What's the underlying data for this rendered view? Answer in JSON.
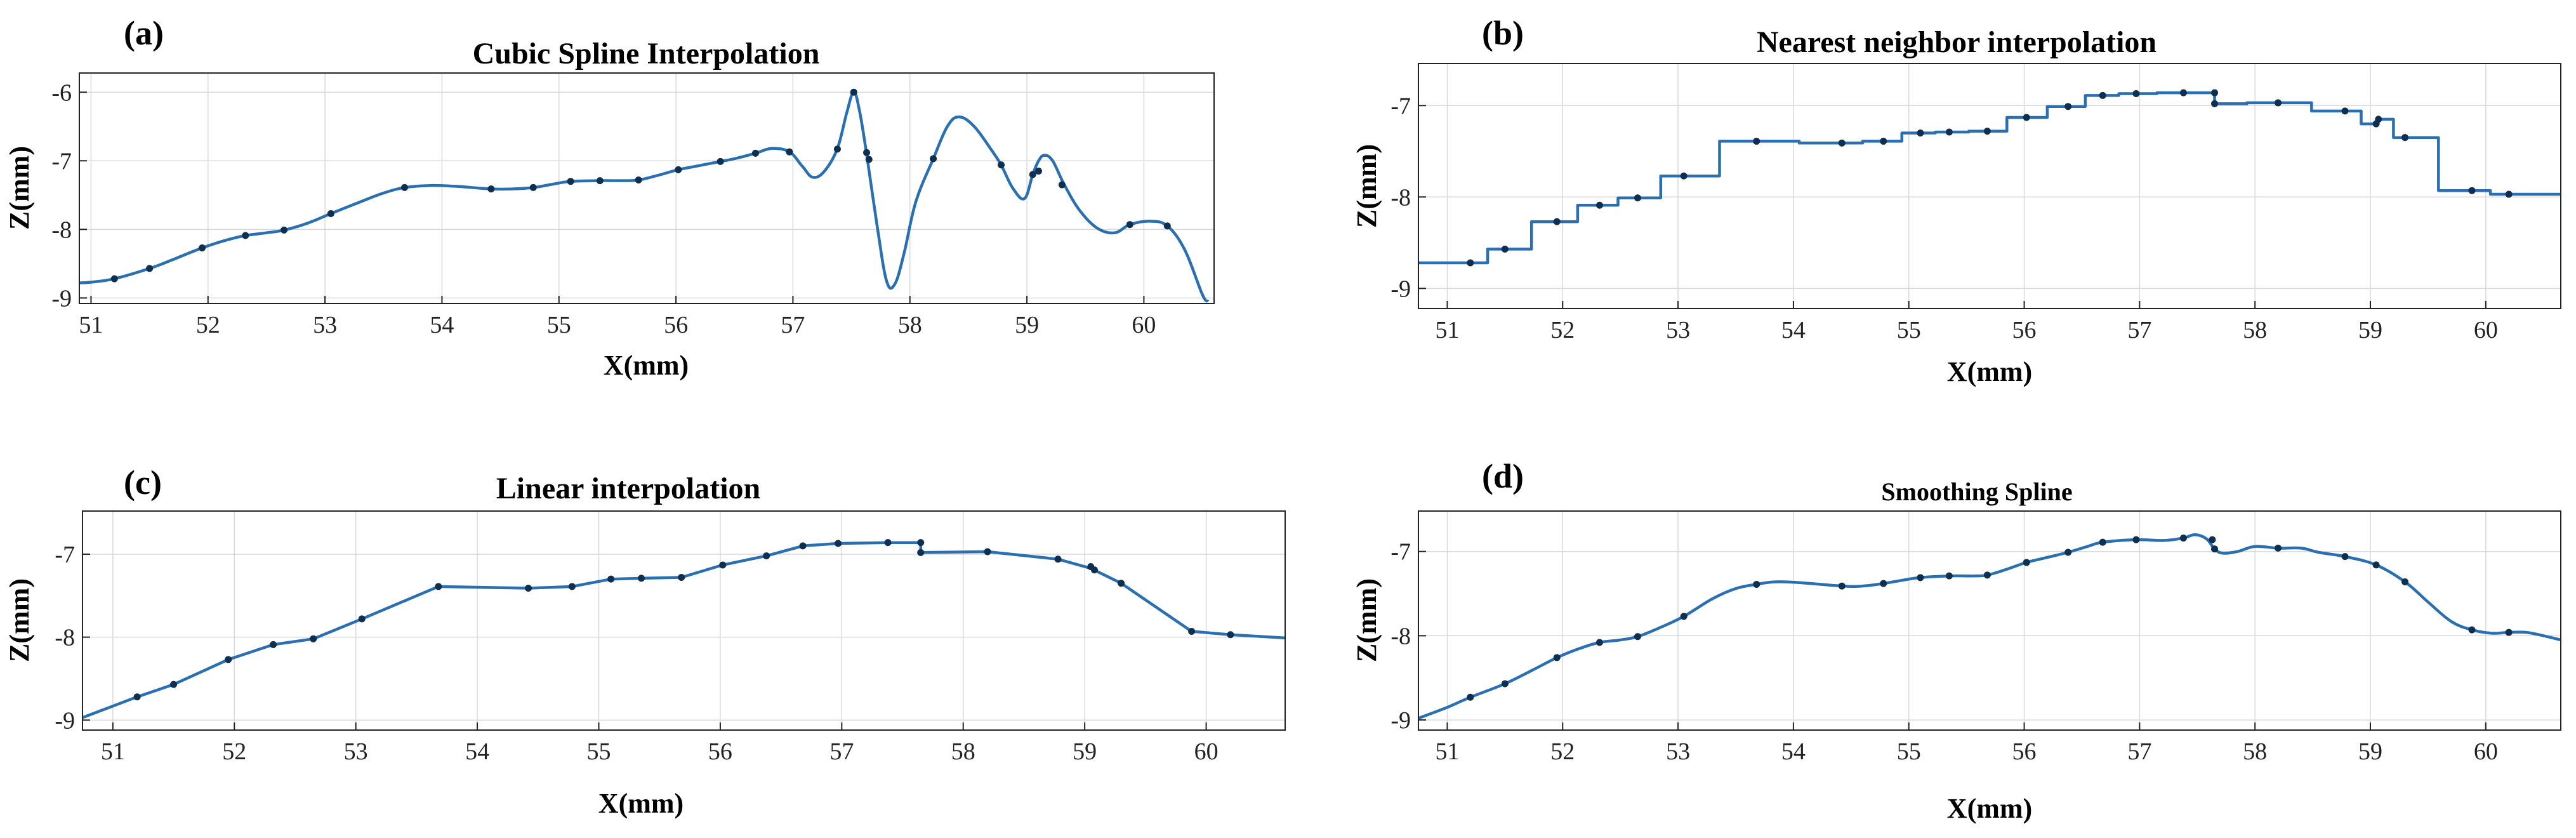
{
  "chart_data": [
    {
      "id": "a",
      "label": "(a)",
      "type": "line",
      "title": "Cubic Spline Interpolation",
      "xlabel": "X(mm)",
      "ylabel": "Z(mm)",
      "xlim": [
        50.9,
        60.6
      ],
      "ylim": [
        -9.08,
        -5.72
      ],
      "xticks": [
        51,
        52,
        53,
        54,
        55,
        56,
        57,
        58,
        59,
        60
      ],
      "yticks": [
        -9,
        -8,
        -7,
        -6
      ],
      "interp": "spline",
      "curve": [
        [
          50.9,
          -8.78
        ],
        [
          51.0,
          -8.77
        ],
        [
          51.2,
          -8.72
        ],
        [
          51.5,
          -8.57
        ],
        [
          51.7,
          -8.44
        ],
        [
          51.95,
          -8.27
        ],
        [
          52.15,
          -8.16
        ],
        [
          52.32,
          -8.09
        ],
        [
          52.5,
          -8.05
        ],
        [
          52.65,
          -8.01
        ],
        [
          52.85,
          -7.91
        ],
        [
          53.05,
          -7.77
        ],
        [
          53.3,
          -7.6
        ],
        [
          53.5,
          -7.47
        ],
        [
          53.68,
          -7.39
        ],
        [
          53.9,
          -7.36
        ],
        [
          54.1,
          -7.37
        ],
        [
          54.42,
          -7.41
        ],
        [
          54.6,
          -7.41
        ],
        [
          54.78,
          -7.39
        ],
        [
          54.95,
          -7.34
        ],
        [
          55.1,
          -7.3
        ],
        [
          55.35,
          -7.29
        ],
        [
          55.55,
          -7.29
        ],
        [
          55.68,
          -7.28
        ],
        [
          55.85,
          -7.21
        ],
        [
          56.02,
          -7.13
        ],
        [
          56.2,
          -7.07
        ],
        [
          56.38,
          -7.01
        ],
        [
          56.5,
          -6.97
        ],
        [
          56.68,
          -6.89
        ],
        [
          56.82,
          -6.82
        ],
        [
          56.97,
          -6.87
        ],
        [
          57.08,
          -7.08
        ],
        [
          57.17,
          -7.24
        ],
        [
          57.27,
          -7.15
        ],
        [
          57.38,
          -6.82
        ],
        [
          57.46,
          -6.3
        ],
        [
          57.52,
          -6.0
        ],
        [
          57.57,
          -6.28
        ],
        [
          57.63,
          -6.9
        ],
        [
          57.72,
          -7.95
        ],
        [
          57.8,
          -8.75
        ],
        [
          57.87,
          -8.8
        ],
        [
          57.95,
          -8.35
        ],
        [
          58.05,
          -7.6
        ],
        [
          58.2,
          -6.97
        ],
        [
          58.32,
          -6.5
        ],
        [
          58.42,
          -6.36
        ],
        [
          58.55,
          -6.5
        ],
        [
          58.7,
          -6.85
        ],
        [
          58.78,
          -7.06
        ],
        [
          58.88,
          -7.4
        ],
        [
          58.98,
          -7.55
        ],
        [
          59.05,
          -7.2
        ],
        [
          59.1,
          -7.0
        ],
        [
          59.15,
          -6.92
        ],
        [
          59.22,
          -7.0
        ],
        [
          59.32,
          -7.35
        ],
        [
          59.45,
          -7.72
        ],
        [
          59.6,
          -7.98
        ],
        [
          59.75,
          -8.05
        ],
        [
          59.88,
          -7.93
        ],
        [
          60.05,
          -7.88
        ],
        [
          60.2,
          -7.95
        ],
        [
          60.35,
          -8.3
        ],
        [
          60.5,
          -8.95
        ],
        [
          60.55,
          -9.05
        ]
      ],
      "points": [
        [
          51.2,
          -8.72
        ],
        [
          51.5,
          -8.57
        ],
        [
          51.95,
          -8.27
        ],
        [
          52.32,
          -8.09
        ],
        [
          52.65,
          -8.01
        ],
        [
          53.05,
          -7.77
        ],
        [
          53.68,
          -7.39
        ],
        [
          54.42,
          -7.41
        ],
        [
          54.78,
          -7.39
        ],
        [
          55.1,
          -7.3
        ],
        [
          55.35,
          -7.29
        ],
        [
          55.68,
          -7.28
        ],
        [
          56.02,
          -7.13
        ],
        [
          56.38,
          -7.01
        ],
        [
          56.68,
          -6.89
        ],
        [
          56.97,
          -6.87
        ],
        [
          57.38,
          -6.83
        ],
        [
          57.52,
          -6.0
        ],
        [
          57.63,
          -6.88
        ],
        [
          57.65,
          -6.98
        ],
        [
          58.2,
          -6.97
        ],
        [
          58.78,
          -7.06
        ],
        [
          59.05,
          -7.2
        ],
        [
          59.1,
          -7.15
        ],
        [
          59.3,
          -7.35
        ],
        [
          59.88,
          -7.93
        ],
        [
          60.2,
          -7.95
        ]
      ]
    },
    {
      "id": "b",
      "label": "(b)",
      "type": "line",
      "title": "Nearest neighbor interpolation",
      "xlabel": "X(mm)",
      "ylabel": "Z(mm)",
      "xlim": [
        50.75,
        60.65
      ],
      "ylim": [
        -9.22,
        -6.54
      ],
      "xticks": [
        51,
        52,
        53,
        54,
        55,
        56,
        57,
        58,
        59,
        60
      ],
      "yticks": [
        -9,
        -8,
        -7
      ],
      "interp": "step",
      "curve": [
        [
          50.75,
          -8.72
        ],
        [
          51.2,
          -8.72
        ],
        [
          51.35,
          -8.72
        ],
        [
          51.35,
          -8.57
        ],
        [
          51.73,
          -8.57
        ],
        [
          51.73,
          -8.27
        ],
        [
          52.13,
          -8.27
        ],
        [
          52.13,
          -8.09
        ],
        [
          52.48,
          -8.09
        ],
        [
          52.48,
          -8.01
        ],
        [
          52.85,
          -8.01
        ],
        [
          52.85,
          -7.77
        ],
        [
          53.36,
          -7.77
        ],
        [
          53.36,
          -7.39
        ],
        [
          54.05,
          -7.39
        ],
        [
          54.05,
          -7.41
        ],
        [
          54.6,
          -7.41
        ],
        [
          54.6,
          -7.39
        ],
        [
          54.94,
          -7.39
        ],
        [
          54.94,
          -7.3
        ],
        [
          55.23,
          -7.3
        ],
        [
          55.23,
          -7.29
        ],
        [
          55.52,
          -7.29
        ],
        [
          55.52,
          -7.28
        ],
        [
          55.85,
          -7.28
        ],
        [
          55.85,
          -7.13
        ],
        [
          56.2,
          -7.13
        ],
        [
          56.2,
          -7.01
        ],
        [
          56.53,
          -7.01
        ],
        [
          56.53,
          -6.89
        ],
        [
          56.82,
          -6.89
        ],
        [
          56.82,
          -6.87
        ],
        [
          57.15,
          -6.87
        ],
        [
          57.15,
          -6.86
        ],
        [
          57.65,
          -6.86
        ],
        [
          57.65,
          -6.98
        ],
        [
          57.93,
          -6.98
        ],
        [
          57.93,
          -6.97
        ],
        [
          58.49,
          -6.97
        ],
        [
          58.49,
          -7.06
        ],
        [
          58.92,
          -7.06
        ],
        [
          58.92,
          -7.2
        ],
        [
          59.06,
          -7.2
        ],
        [
          59.06,
          -7.15
        ],
        [
          59.2,
          -7.15
        ],
        [
          59.2,
          -7.35
        ],
        [
          59.59,
          -7.35
        ],
        [
          59.59,
          -7.93
        ],
        [
          60.04,
          -7.93
        ],
        [
          60.04,
          -7.97
        ],
        [
          60.65,
          -7.97
        ]
      ],
      "points": [
        [
          51.2,
          -8.72
        ],
        [
          51.5,
          -8.57
        ],
        [
          51.95,
          -8.27
        ],
        [
          52.32,
          -8.09
        ],
        [
          52.65,
          -8.01
        ],
        [
          53.05,
          -7.77
        ],
        [
          53.68,
          -7.39
        ],
        [
          54.42,
          -7.41
        ],
        [
          54.78,
          -7.39
        ],
        [
          55.1,
          -7.3
        ],
        [
          55.35,
          -7.29
        ],
        [
          55.68,
          -7.28
        ],
        [
          56.02,
          -7.13
        ],
        [
          56.38,
          -7.01
        ],
        [
          56.68,
          -6.89
        ],
        [
          56.97,
          -6.87
        ],
        [
          57.38,
          -6.86
        ],
        [
          57.65,
          -6.86
        ],
        [
          57.65,
          -6.98
        ],
        [
          58.2,
          -6.97
        ],
        [
          58.78,
          -7.06
        ],
        [
          59.05,
          -7.2
        ],
        [
          59.07,
          -7.15
        ],
        [
          59.3,
          -7.35
        ],
        [
          59.88,
          -7.93
        ],
        [
          60.2,
          -7.97
        ]
      ]
    },
    {
      "id": "c",
      "label": "(c)",
      "type": "line",
      "title": "Linear interpolation",
      "xlabel": "X(mm)",
      "ylabel": "Z(mm)",
      "xlim": [
        50.75,
        60.65
      ],
      "ylim": [
        -9.12,
        -6.48
      ],
      "xticks": [
        51,
        52,
        53,
        54,
        55,
        56,
        57,
        58,
        59,
        60
      ],
      "yticks": [
        -9,
        -8,
        -7
      ],
      "interp": "linear",
      "curve": [
        [
          50.75,
          -8.97
        ],
        [
          51.2,
          -8.72
        ],
        [
          51.5,
          -8.57
        ],
        [
          51.95,
          -8.27
        ],
        [
          52.32,
          -8.09
        ],
        [
          52.65,
          -8.02
        ],
        [
          53.05,
          -7.78
        ],
        [
          53.68,
          -7.39
        ],
        [
          54.42,
          -7.41
        ],
        [
          54.78,
          -7.39
        ],
        [
          55.1,
          -7.3
        ],
        [
          55.35,
          -7.29
        ],
        [
          55.68,
          -7.28
        ],
        [
          56.02,
          -7.13
        ],
        [
          56.38,
          -7.02
        ],
        [
          56.68,
          -6.9
        ],
        [
          56.97,
          -6.87
        ],
        [
          57.38,
          -6.86
        ],
        [
          57.65,
          -6.86
        ],
        [
          57.65,
          -6.98
        ],
        [
          58.2,
          -6.97
        ],
        [
          58.78,
          -7.06
        ],
        [
          59.05,
          -7.17
        ],
        [
          59.3,
          -7.35
        ],
        [
          59.88,
          -7.93
        ],
        [
          60.2,
          -7.97
        ],
        [
          60.65,
          -8.01
        ]
      ],
      "points": [
        [
          51.2,
          -8.72
        ],
        [
          51.5,
          -8.57
        ],
        [
          51.95,
          -8.27
        ],
        [
          52.32,
          -8.09
        ],
        [
          52.65,
          -8.02
        ],
        [
          53.05,
          -7.78
        ],
        [
          53.68,
          -7.39
        ],
        [
          54.42,
          -7.41
        ],
        [
          54.78,
          -7.39
        ],
        [
          55.1,
          -7.3
        ],
        [
          55.35,
          -7.29
        ],
        [
          55.68,
          -7.28
        ],
        [
          56.02,
          -7.13
        ],
        [
          56.38,
          -7.02
        ],
        [
          56.68,
          -6.9
        ],
        [
          56.97,
          -6.87
        ],
        [
          57.38,
          -6.86
        ],
        [
          57.65,
          -6.86
        ],
        [
          57.65,
          -6.98
        ],
        [
          58.2,
          -6.97
        ],
        [
          58.78,
          -7.06
        ],
        [
          59.05,
          -7.15
        ],
        [
          59.08,
          -7.19
        ],
        [
          59.3,
          -7.35
        ],
        [
          59.88,
          -7.93
        ],
        [
          60.2,
          -7.97
        ]
      ]
    },
    {
      "id": "d",
      "label": "(d)",
      "type": "line",
      "title": "Smoothing Spline",
      "xlabel": "X(mm)",
      "ylabel": "Z(mm)",
      "xlim": [
        50.75,
        60.65
      ],
      "ylim": [
        -9.12,
        -6.52
      ],
      "xticks": [
        51,
        52,
        53,
        54,
        55,
        56,
        57,
        58,
        59,
        60
      ],
      "yticks": [
        -9,
        -8,
        -7
      ],
      "interp": "spline",
      "curve": [
        [
          50.75,
          -8.98
        ],
        [
          51.0,
          -8.85
        ],
        [
          51.2,
          -8.73
        ],
        [
          51.5,
          -8.57
        ],
        [
          51.75,
          -8.4
        ],
        [
          51.95,
          -8.26
        ],
        [
          52.15,
          -8.15
        ],
        [
          52.32,
          -8.08
        ],
        [
          52.5,
          -8.05
        ],
        [
          52.65,
          -8.01
        ],
        [
          52.85,
          -7.9
        ],
        [
          53.05,
          -7.77
        ],
        [
          53.3,
          -7.56
        ],
        [
          53.5,
          -7.44
        ],
        [
          53.68,
          -7.39
        ],
        [
          53.85,
          -7.36
        ],
        [
          54.05,
          -7.37
        ],
        [
          54.42,
          -7.41
        ],
        [
          54.6,
          -7.41
        ],
        [
          54.78,
          -7.38
        ],
        [
          54.95,
          -7.34
        ],
        [
          55.1,
          -7.31
        ],
        [
          55.35,
          -7.29
        ],
        [
          55.55,
          -7.29
        ],
        [
          55.68,
          -7.28
        ],
        [
          55.85,
          -7.21
        ],
        [
          56.02,
          -7.13
        ],
        [
          56.2,
          -7.07
        ],
        [
          56.38,
          -7.01
        ],
        [
          56.55,
          -6.94
        ],
        [
          56.68,
          -6.89
        ],
        [
          56.97,
          -6.86
        ],
        [
          57.2,
          -6.87
        ],
        [
          57.38,
          -6.84
        ],
        [
          57.48,
          -6.8
        ],
        [
          57.58,
          -6.85
        ],
        [
          57.65,
          -6.97
        ],
        [
          57.72,
          -7.02
        ],
        [
          57.85,
          -7.0
        ],
        [
          58.0,
          -6.94
        ],
        [
          58.2,
          -6.96
        ],
        [
          58.4,
          -6.96
        ],
        [
          58.55,
          -7.01
        ],
        [
          58.78,
          -7.06
        ],
        [
          59.05,
          -7.16
        ],
        [
          59.3,
          -7.36
        ],
        [
          59.5,
          -7.6
        ],
        [
          59.7,
          -7.83
        ],
        [
          59.88,
          -7.93
        ],
        [
          60.05,
          -7.97
        ],
        [
          60.2,
          -7.96
        ],
        [
          60.35,
          -7.96
        ],
        [
          60.5,
          -8.0
        ],
        [
          60.65,
          -8.05
        ]
      ],
      "points": [
        [
          51.2,
          -8.73
        ],
        [
          51.5,
          -8.57
        ],
        [
          51.95,
          -8.26
        ],
        [
          52.32,
          -8.08
        ],
        [
          52.65,
          -8.01
        ],
        [
          53.05,
          -7.77
        ],
        [
          53.68,
          -7.39
        ],
        [
          54.42,
          -7.41
        ],
        [
          54.78,
          -7.38
        ],
        [
          55.1,
          -7.31
        ],
        [
          55.35,
          -7.29
        ],
        [
          55.68,
          -7.28
        ],
        [
          56.02,
          -7.13
        ],
        [
          56.38,
          -7.01
        ],
        [
          56.68,
          -6.89
        ],
        [
          56.97,
          -6.86
        ],
        [
          57.38,
          -6.84
        ],
        [
          57.63,
          -6.86
        ],
        [
          57.65,
          -6.97
        ],
        [
          58.2,
          -6.96
        ],
        [
          58.78,
          -7.06
        ],
        [
          59.05,
          -7.16
        ],
        [
          59.3,
          -7.36
        ],
        [
          59.88,
          -7.93
        ],
        [
          60.2,
          -7.96
        ]
      ]
    }
  ]
}
